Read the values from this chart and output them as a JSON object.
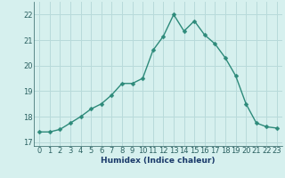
{
  "x": [
    0,
    1,
    2,
    3,
    4,
    5,
    6,
    7,
    8,
    9,
    10,
    11,
    12,
    13,
    14,
    15,
    16,
    17,
    18,
    19,
    20,
    21,
    22,
    23
  ],
  "y": [
    17.4,
    17.4,
    17.5,
    17.75,
    18.0,
    18.3,
    18.5,
    18.85,
    19.3,
    19.3,
    19.5,
    20.6,
    21.15,
    22.0,
    21.35,
    21.75,
    21.2,
    20.85,
    20.3,
    19.6,
    18.5,
    17.75,
    17.6,
    17.55
  ],
  "xlabel": "Humidex (Indice chaleur)",
  "xlim": [
    -0.5,
    23.5
  ],
  "ylim": [
    16.85,
    22.5
  ],
  "yticks": [
    17,
    18,
    19,
    20,
    21,
    22
  ],
  "xticks": [
    0,
    1,
    2,
    3,
    4,
    5,
    6,
    7,
    8,
    9,
    10,
    11,
    12,
    13,
    14,
    15,
    16,
    17,
    18,
    19,
    20,
    21,
    22,
    23
  ],
  "line_color": "#2d8a7a",
  "marker_color": "#2d8a7a",
  "bg_color": "#d6f0ee",
  "grid_color": "#b8dada",
  "tick_label_color": "#2a6060",
  "xlabel_color": "#1a3a6a",
  "xlabel_fontsize": 6.5,
  "tick_fontsize": 6,
  "line_width": 1.0,
  "marker_size": 2.5
}
